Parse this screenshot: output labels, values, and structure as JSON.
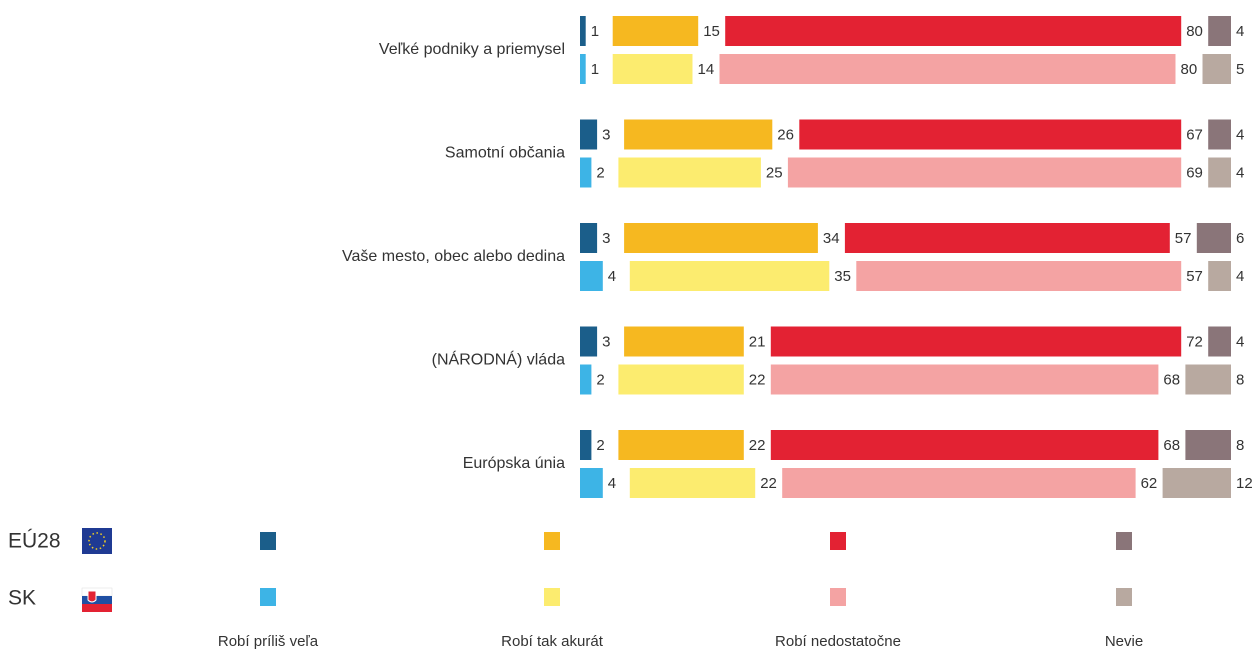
{
  "chart_data": {
    "type": "stacked-bar",
    "categories": [
      "Veľké podniky a priemysel",
      "Samotní občania",
      "Vaše mesto, obec alebo dedina",
      "(NÁRODNÁ) vláda",
      "Európska únia"
    ],
    "groups": [
      "EÚ28",
      "SK"
    ],
    "series": [
      {
        "name": "Robí príliš veľa",
        "colors": [
          "#1b5e8a",
          "#3db4e6"
        ],
        "values": [
          [
            1,
            1
          ],
          [
            3,
            2
          ],
          [
            3,
            4
          ],
          [
            3,
            2
          ],
          [
            2,
            4
          ]
        ]
      },
      {
        "name": "Robí tak akurát",
        "colors": [
          "#f6b820",
          "#fcec6f"
        ],
        "values": [
          [
            15,
            14
          ],
          [
            26,
            25
          ],
          [
            34,
            35
          ],
          [
            21,
            22
          ],
          [
            22,
            22
          ]
        ]
      },
      {
        "name": "Robí nedostatočne",
        "colors": [
          "#e32233",
          "#f4a3a3"
        ],
        "values": [
          [
            80,
            80
          ],
          [
            67,
            69
          ],
          [
            57,
            57
          ],
          [
            72,
            68
          ],
          [
            68,
            62
          ]
        ]
      },
      {
        "name": "Nevie",
        "colors": [
          "#8a7579",
          "#b8a9a0"
        ],
        "values": [
          [
            4,
            5
          ],
          [
            4,
            4
          ],
          [
            6,
            4
          ],
          [
            4,
            8
          ],
          [
            8,
            12
          ]
        ]
      }
    ]
  }
}
